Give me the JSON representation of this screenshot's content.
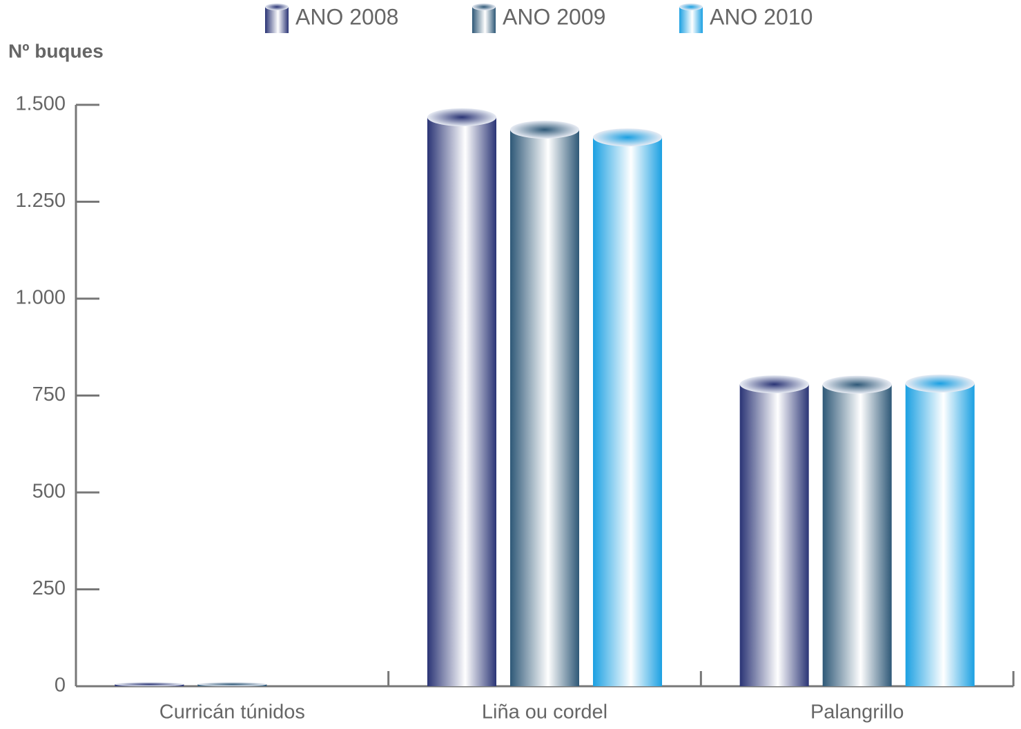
{
  "chart_data": {
    "type": "bar",
    "y_label": "Nº buques",
    "categories": [
      "Curricán túnidos",
      "Liña ou cordel",
      "Palangrillo"
    ],
    "series": [
      {
        "name": "ANO 2008",
        "color": "#2a3475",
        "values": [
          5,
          1468,
          779
        ]
      },
      {
        "name": "ANO 2009",
        "color": "#2e5877",
        "values": [
          5,
          1436,
          778
        ]
      },
      {
        "name": "ANO 2010",
        "color": "#1ba0e2",
        "values": [
          null,
          1416,
          781
        ]
      }
    ],
    "ylim": [
      0,
      1500
    ],
    "yticks": [
      0,
      250,
      500,
      750,
      {
        "value": 1000,
        "label": "1.000"
      },
      {
        "value": 1250,
        "label": "1.250"
      },
      {
        "value": 1500,
        "label": "1.500"
      }
    ]
  }
}
